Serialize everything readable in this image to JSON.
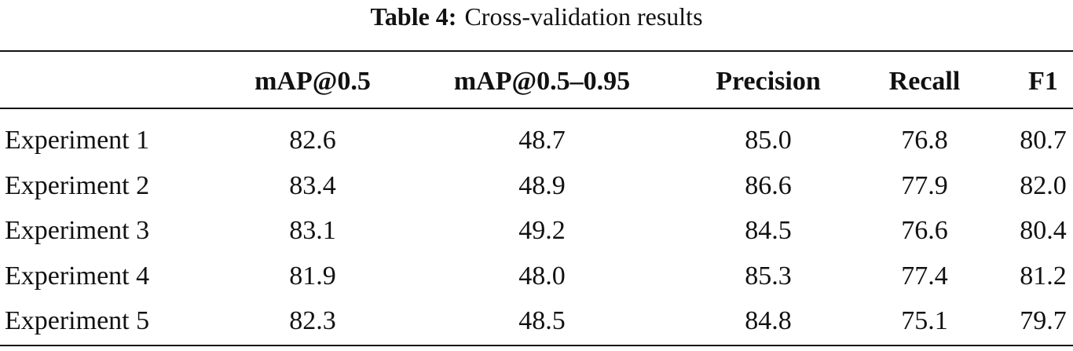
{
  "title": {
    "label": "Table 4:",
    "text": "Cross-validation results"
  },
  "table": {
    "columns": [
      "mAP@0.5",
      "mAP@0.5–0.95",
      "Precision",
      "Recall",
      "F1"
    ],
    "rows": [
      [
        "Experiment 1",
        "82.6",
        "48.7",
        "85.0",
        "76.8",
        "80.7"
      ],
      [
        "Experiment 2",
        "83.4",
        "48.9",
        "86.6",
        "77.9",
        "82.0"
      ],
      [
        "Experiment 3",
        "83.1",
        "49.2",
        "84.5",
        "76.6",
        "80.4"
      ],
      [
        "Experiment 4",
        "81.9",
        "48.0",
        "85.3",
        "77.4",
        "81.2"
      ],
      [
        "Experiment 5",
        "82.3",
        "48.5",
        "84.8",
        "75.1",
        "79.7"
      ]
    ]
  }
}
